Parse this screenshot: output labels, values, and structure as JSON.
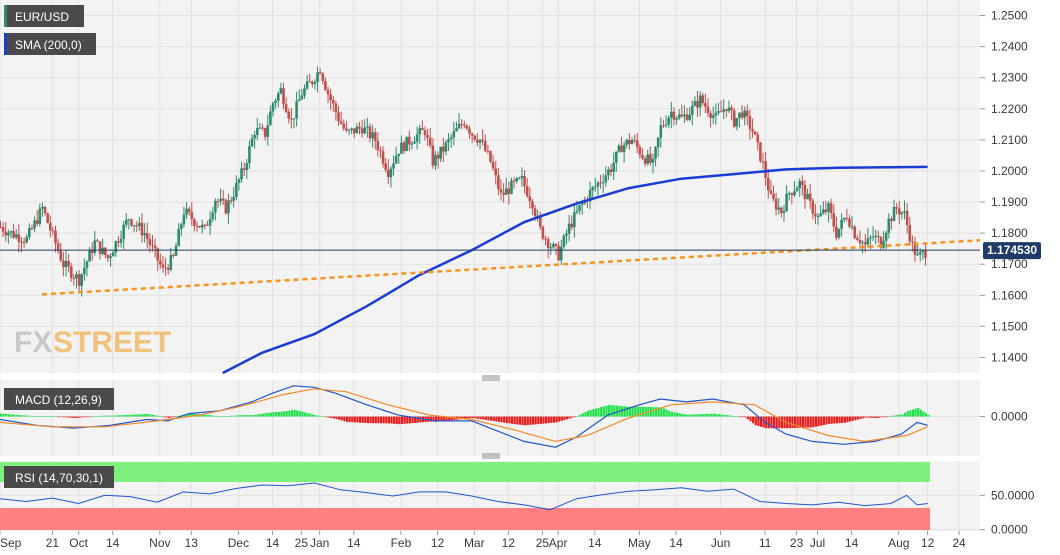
{
  "chart_data": [
    {
      "type": "candlestick",
      "symbol_label": "EUR/USD",
      "indicator_label": "SMA (200,0)",
      "last_price_label": "1.174530",
      "last_price": 1.17453,
      "ylim": [
        1.135,
        1.255
      ],
      "y_ticks": [
        "1.2500",
        "1.2400",
        "1.2300",
        "1.2200",
        "1.2100",
        "1.2000",
        "1.1900",
        "1.1800",
        "1.1700",
        "1.1600",
        "1.1500",
        "1.1400"
      ],
      "y_tick_values": [
        1.25,
        1.24,
        1.23,
        1.22,
        1.21,
        1.2,
        1.19,
        1.18,
        1.17,
        1.16,
        1.15,
        1.14
      ],
      "x_ticks": [
        "Sep",
        "21",
        "Oct",
        "14",
        "Nov",
        "13",
        "Dec",
        "14",
        "25",
        "Jan",
        "14",
        "Feb",
        "12",
        "Mar",
        "12",
        "25",
        "Apr",
        "14",
        "May",
        "14",
        "Jun",
        "11",
        "23",
        "Jul",
        "14",
        "Aug",
        "12",
        "24"
      ],
      "x_tick_days": [
        0,
        20,
        30,
        43,
        61,
        73,
        91,
        104,
        115,
        122,
        135,
        153,
        167,
        181,
        194,
        207,
        213,
        227,
        244,
        258,
        275,
        292,
        304,
        312,
        325,
        343,
        354,
        366
      ],
      "x_range_days": [
        0,
        374
      ],
      "price_path": [
        [
          0,
          1.182
        ],
        [
          4,
          1.18
        ],
        [
          10,
          1.178
        ],
        [
          16,
          1.188
        ],
        [
          24,
          1.17
        ],
        [
          30,
          1.165
        ],
        [
          36,
          1.177
        ],
        [
          41,
          1.172
        ],
        [
          49,
          1.185
        ],
        [
          55,
          1.18
        ],
        [
          62,
          1.168
        ],
        [
          66,
          1.172
        ],
        [
          70,
          1.187
        ],
        [
          78,
          1.181
        ],
        [
          82,
          1.191
        ],
        [
          86,
          1.188
        ],
        [
          89,
          1.193
        ],
        [
          93,
          1.201
        ],
        [
          97,
          1.213
        ],
        [
          101,
          1.212
        ],
        [
          104,
          1.222
        ],
        [
          107,
          1.226
        ],
        [
          111,
          1.216
        ],
        [
          115,
          1.225
        ],
        [
          119,
          1.229
        ],
        [
          122,
          1.233
        ],
        [
          125,
          1.225
        ],
        [
          129,
          1.217
        ],
        [
          132,
          1.212
        ],
        [
          138,
          1.214
        ],
        [
          143,
          1.21
        ],
        [
          148,
          1.2
        ],
        [
          152,
          1.207
        ],
        [
          158,
          1.211
        ],
        [
          162,
          1.213
        ],
        [
          165,
          1.203
        ],
        [
          169,
          1.207
        ],
        [
          174,
          1.213
        ],
        [
          177,
          1.216
        ],
        [
          180,
          1.212
        ],
        [
          183,
          1.21
        ],
        [
          187,
          1.203
        ],
        [
          191,
          1.192
        ],
        [
          195,
          1.195
        ],
        [
          199,
          1.197
        ],
        [
          203,
          1.19
        ],
        [
          206,
          1.181
        ],
        [
          210,
          1.176
        ],
        [
          213,
          1.173
        ],
        [
          217,
          1.182
        ],
        [
          221,
          1.188
        ],
        [
          225,
          1.193
        ],
        [
          229,
          1.197
        ],
        [
          233,
          1.201
        ],
        [
          237,
          1.208
        ],
        [
          241,
          1.21
        ],
        [
          245,
          1.205
        ],
        [
          249,
          1.202
        ],
        [
          252,
          1.214
        ],
        [
          256,
          1.219
        ],
        [
          260,
          1.217
        ],
        [
          263,
          1.219
        ],
        [
          267,
          1.223
        ],
        [
          270,
          1.22
        ],
        [
          273,
          1.217
        ],
        [
          277,
          1.221
        ],
        [
          280,
          1.216
        ],
        [
          283,
          1.219
        ],
        [
          287,
          1.213
        ],
        [
          291,
          1.202
        ],
        [
          294,
          1.191
        ],
        [
          298,
          1.187
        ],
        [
          301,
          1.193
        ],
        [
          305,
          1.196
        ],
        [
          309,
          1.189
        ],
        [
          312,
          1.185
        ],
        [
          316,
          1.188
        ],
        [
          319,
          1.18
        ],
        [
          323,
          1.186
        ],
        [
          326,
          1.18
        ],
        [
          330,
          1.176
        ],
        [
          333,
          1.179
        ],
        [
          336,
          1.177
        ],
        [
          339,
          1.184
        ],
        [
          342,
          1.188
        ],
        [
          345,
          1.186
        ],
        [
          348,
          1.176
        ],
        [
          350,
          1.172
        ],
        [
          353,
          1.174
        ]
      ],
      "sma200_path": [
        [
          85,
          1.135
        ],
        [
          100,
          1.1415
        ],
        [
          120,
          1.1475
        ],
        [
          140,
          1.1565
        ],
        [
          160,
          1.1665
        ],
        [
          180,
          1.1745
        ],
        [
          200,
          1.1835
        ],
        [
          220,
          1.1895
        ],
        [
          240,
          1.1945
        ],
        [
          260,
          1.1975
        ],
        [
          280,
          1.199
        ],
        [
          300,
          1.2005
        ],
        [
          320,
          1.201
        ],
        [
          340,
          1.2012
        ],
        [
          354,
          1.2013
        ]
      ],
      "trendline": [
        [
          16,
          1.1603
        ],
        [
          374,
          1.1777
        ]
      ]
    },
    {
      "type": "histogram+line",
      "label": "MACD (12,26,9)",
      "y_tick": "0.0000",
      "ylim": [
        -0.0135,
        0.0125
      ],
      "macd_path": [
        [
          0,
          -0.001
        ],
        [
          14,
          -0.003
        ],
        [
          28,
          -0.004
        ],
        [
          42,
          -0.003
        ],
        [
          56,
          -0.001
        ],
        [
          64,
          -0.0015
        ],
        [
          72,
          0.001
        ],
        [
          84,
          0.002
        ],
        [
          96,
          0.005
        ],
        [
          104,
          0.008
        ],
        [
          112,
          0.0105
        ],
        [
          120,
          0.01
        ],
        [
          128,
          0.008
        ],
        [
          140,
          0.004
        ],
        [
          152,
          0.0005
        ],
        [
          166,
          -0.0015
        ],
        [
          180,
          -0.0015
        ],
        [
          190,
          -0.005
        ],
        [
          200,
          -0.0085
        ],
        [
          212,
          -0.0105
        ],
        [
          220,
          -0.007
        ],
        [
          232,
          0.0005
        ],
        [
          244,
          0.004
        ],
        [
          252,
          0.006
        ],
        [
          262,
          0.005
        ],
        [
          272,
          0.006
        ],
        [
          284,
          0.004
        ],
        [
          292,
          -0.002
        ],
        [
          300,
          -0.006
        ],
        [
          310,
          -0.0085
        ],
        [
          322,
          -0.0095
        ],
        [
          334,
          -0.0085
        ],
        [
          344,
          -0.006
        ],
        [
          350,
          -0.002
        ],
        [
          354,
          -0.003
        ]
      ],
      "signal_path": [
        [
          0,
          -0.002
        ],
        [
          20,
          -0.0035
        ],
        [
          40,
          -0.0035
        ],
        [
          60,
          -0.0015
        ],
        [
          76,
          0.0005
        ],
        [
          92,
          0.0035
        ],
        [
          108,
          0.0075
        ],
        [
          120,
          0.0095
        ],
        [
          132,
          0.0085
        ],
        [
          148,
          0.004
        ],
        [
          164,
          0.0005
        ],
        [
          180,
          -0.001
        ],
        [
          196,
          -0.0045
        ],
        [
          212,
          -0.0085
        ],
        [
          224,
          -0.0065
        ],
        [
          240,
          -0.0005
        ],
        [
          256,
          0.004
        ],
        [
          272,
          0.005
        ],
        [
          288,
          0.004
        ],
        [
          300,
          -0.002
        ],
        [
          316,
          -0.0065
        ],
        [
          330,
          -0.0085
        ],
        [
          346,
          -0.0065
        ],
        [
          354,
          -0.0035
        ]
      ]
    },
    {
      "type": "line",
      "label": "RSI (14,70,30,1)",
      "y_ticks": [
        "50.0000",
        "0.0000"
      ],
      "y_tick_values": [
        50,
        0
      ],
      "ylim": [
        -2,
        100
      ],
      "overbought": 70,
      "oversold": 30,
      "rsi_path": [
        [
          0,
          45
        ],
        [
          10,
          41
        ],
        [
          20,
          46
        ],
        [
          30,
          38
        ],
        [
          40,
          50
        ],
        [
          50,
          48
        ],
        [
          60,
          40
        ],
        [
          70,
          55
        ],
        [
          80,
          52
        ],
        [
          90,
          60
        ],
        [
          100,
          65
        ],
        [
          110,
          64
        ],
        [
          120,
          68
        ],
        [
          130,
          58
        ],
        [
          140,
          54
        ],
        [
          150,
          49
        ],
        [
          160,
          55
        ],
        [
          170,
          55
        ],
        [
          180,
          49
        ],
        [
          190,
          41
        ],
        [
          200,
          36
        ],
        [
          210,
          29
        ],
        [
          220,
          45
        ],
        [
          230,
          51
        ],
        [
          240,
          56
        ],
        [
          250,
          58
        ],
        [
          260,
          61
        ],
        [
          270,
          56
        ],
        [
          280,
          59
        ],
        [
          290,
          41
        ],
        [
          300,
          38
        ],
        [
          310,
          36
        ],
        [
          320,
          40
        ],
        [
          330,
          35
        ],
        [
          340,
          38
        ],
        [
          346,
          50
        ],
        [
          350,
          36
        ],
        [
          354,
          38
        ]
      ]
    }
  ],
  "watermark": {
    "fx": "FX",
    "street": "STREET"
  },
  "colors": {
    "up": "#2e8b6e",
    "down": "#c0504d",
    "sma": "#1a3cd6",
    "trendline": "#f7941d",
    "macd_line": "#2255cc",
    "signal_line": "#f28a2a",
    "hist_pos": "#22e04a",
    "hist_neg": "#e81c1c",
    "rsi_line": "#2255cc",
    "rsi_overbought_zone": "#7df07d",
    "rsi_oversold_zone": "#ff8080",
    "price_tag": "#1f3a66",
    "badge_bg": "#4a4a4a",
    "sma_badge_accent": "#1a3cd6",
    "eur_badge_accent": "#2e8b6e"
  }
}
